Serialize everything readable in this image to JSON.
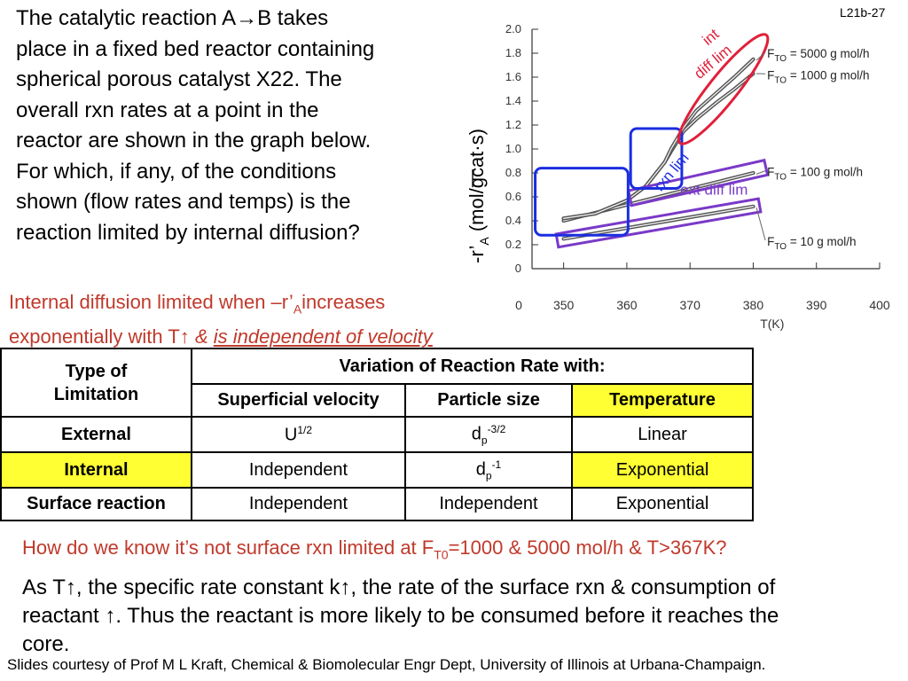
{
  "slide_id": "L21b-27",
  "problem_lines": [
    "The catalytic reaction A→B takes",
    "place in a fixed bed reactor containing",
    "spherical porous catalyst X22.  The",
    "overall rxn rates at a point in the",
    "reactor are shown in the graph below.",
    "For which, if any, of the conditions",
    "shown (flow rates and temps) is the",
    "reaction limited by internal diffusion?"
  ],
  "criterion": {
    "line1_a": "Internal diffusion limited when  –r’",
    "line1_sub": "A",
    "line1_b": "increases",
    "line2_a": "exponentially with T↑ ",
    "line2_amp": "&",
    "line2_u": "is independent of velocity"
  },
  "chart_data": {
    "type": "line",
    "xlabel": "T(K)",
    "ylabel_main": "-r’",
    "ylabel_sub": "A",
    "ylabel_unit": "(mol/gcat·s)",
    "xlim": [
      345,
      400
    ],
    "ylim": [
      0,
      2.0
    ],
    "x_ticks": [
      "350",
      "360",
      "370",
      "380",
      "390",
      "400"
    ],
    "y_ticks": [
      "0",
      "0.2",
      "0.4",
      "0.6",
      "0.8",
      "1.0",
      "1.2",
      "1.4",
      "1.6",
      "1.8",
      "2.0"
    ],
    "series": [
      {
        "name": "F_TO = 10 g mol/h",
        "x": [
          350,
          380
        ],
        "y": [
          0.25,
          0.52
        ]
      },
      {
        "name": "F_TO = 100 g mol/h",
        "x": [
          350,
          380
        ],
        "y": [
          0.4,
          0.8
        ]
      },
      {
        "name": "F_TO = 1000 g mol/h",
        "x": [
          350,
          355,
          360,
          363,
          366,
          367,
          369,
          371,
          374,
          377,
          380
        ],
        "y": [
          0.42,
          0.46,
          0.57,
          0.69,
          0.89,
          0.98,
          1.15,
          1.25,
          1.38,
          1.5,
          1.63
        ]
      },
      {
        "name": "F_TO = 5000 g mol/h",
        "x": [
          350,
          355,
          360,
          363,
          366,
          367,
          369,
          371,
          374,
          377,
          380
        ],
        "y": [
          0.42,
          0.46,
          0.57,
          0.69,
          0.89,
          1.0,
          1.18,
          1.32,
          1.46,
          1.6,
          1.75
        ]
      }
    ],
    "legend": [
      {
        "main": "F",
        "sub": "TO",
        "rest": " = 5000 g mol/h"
      },
      {
        "main": "F",
        "sub": "TO",
        "rest": " = 1000 g mol/h"
      },
      {
        "main": "F",
        "sub": "TO",
        "rest": " = 100 g mol/h"
      },
      {
        "main": "F",
        "sub": "TO",
        "rest": " = 10 g mol/h"
      }
    ],
    "annotations": {
      "int_line1": "int",
      "int_line2": "diff lim",
      "rxn": "rxn lim",
      "ext": "ext diff lim"
    },
    "colors": {
      "int": "#e0203a",
      "rxn": "#1a2ee0",
      "ext": "#7a39c8",
      "curve": "#555555"
    }
  },
  "table": {
    "head_type": "Type of Limitation",
    "head_variation": "Variation of Reaction Rate with:",
    "col_velocity": "Superficial velocity",
    "col_particle": "Particle size",
    "col_temperature": "Temperature",
    "rows": [
      {
        "type": "External",
        "vel_main": "U",
        "vel_sup": "1/2",
        "part_main": "d",
        "part_sub": "p",
        "part_sup": "-3/2",
        "temp": "Linear"
      },
      {
        "type": "Internal",
        "vel": "Independent",
        "part_main": "d",
        "part_sub": "p",
        "part_sup": "-1",
        "temp": "Exponential"
      },
      {
        "type": "Surface reaction",
        "vel": "Independent",
        "part": "Independent",
        "temp": "Exponential"
      }
    ],
    "highlight_color": "#ffff33"
  },
  "question": {
    "a": "How do we know it’s not surface rxn limited at F",
    "sub": "T0",
    "b": "=1000 & 5000 mol/h & T>367K?"
  },
  "answer_lines": [
    "As T↑, the specific rate constant k↑, the rate of the surface rxn & consumption of",
    "reactant ↑.  Thus the reactant is more likely to be consumed before it reaches the",
    "core."
  ],
  "credit": "Slides courtesy of Prof M L Kraft, Chemical & Biomolecular Engr Dept, University of Illinois at Urbana-Champaign."
}
